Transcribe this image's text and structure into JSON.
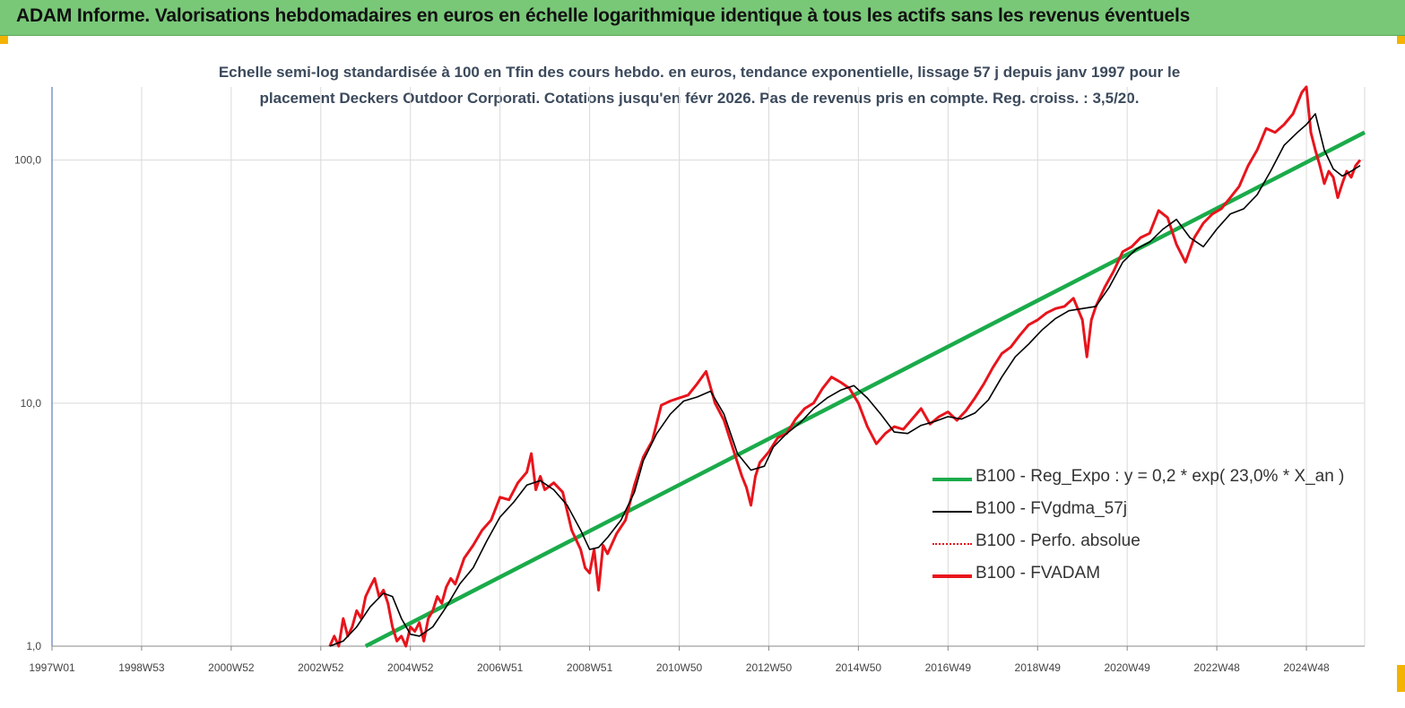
{
  "title": "ADAM Informe. Valorisations hebdomadaires en euros en échelle logarithmique identique à tous les actifs sans les revenus éventuels",
  "subtitle_line1": "Echelle semi-log standardisée à 100 en Tfin des cours hebdo. en euros, tendance exponentielle, lissage 57 j depuis janv 1997 pour le",
  "subtitle_line2": "placement Deckers Outdoor Corporati. Cotations jusqu'en févr 2026. Pas de revenus pris en compte. Reg. croiss. : 3,5/20.",
  "colors": {
    "title_bar": "#79c878",
    "corner": "#f3b300",
    "reg_expo": "#1aab4a",
    "fvgdma": "#000000",
    "perfo": "#e8141c",
    "fvadam": "#e8141c",
    "grid": "#d9d9d9",
    "axis": "#5b7fb0"
  },
  "chart_data": {
    "type": "line",
    "y_scale": "log",
    "ylim": [
      1,
      200
    ],
    "y_ticks": [
      {
        "value": 1,
        "label": "1,0"
      },
      {
        "value": 10,
        "label": "10,0"
      },
      {
        "value": 100,
        "label": "100,0"
      }
    ],
    "x_range": [
      1997.0,
      2026.3
    ],
    "x_ticks": [
      {
        "value": 1997.0,
        "label": "1997W01"
      },
      {
        "value": 1999.0,
        "label": "1998W53"
      },
      {
        "value": 2001.0,
        "label": "2000W52"
      },
      {
        "value": 2003.0,
        "label": "2002W52"
      },
      {
        "value": 2005.0,
        "label": "2004W52"
      },
      {
        "value": 2007.0,
        "label": "2006W51"
      },
      {
        "value": 2009.0,
        "label": "2008W51"
      },
      {
        "value": 2011.0,
        "label": "2010W50"
      },
      {
        "value": 2013.0,
        "label": "2012W50"
      },
      {
        "value": 2015.0,
        "label": "2014W50"
      },
      {
        "value": 2017.0,
        "label": "2016W49"
      },
      {
        "value": 2019.0,
        "label": "2018W49"
      },
      {
        "value": 2021.0,
        "label": "2020W49"
      },
      {
        "value": 2023.0,
        "label": "2022W48"
      },
      {
        "value": 2025.0,
        "label": "2024W48"
      }
    ],
    "grid": true,
    "legend_position": "bottom-right",
    "series": [
      {
        "name": "B100 - Reg_Expo : y = 0,2 * exp( 23,0% *  X_an )",
        "style": "thick-green",
        "x": [
          2004.0,
          2026.3
        ],
        "y": [
          1.0,
          130.0
        ]
      },
      {
        "name": "B100 - FVgdma_57j",
        "style": "thin-black",
        "x": [
          2003.2,
          2003.5,
          2003.8,
          2004.1,
          2004.4,
          2004.6,
          2004.8,
          2005.0,
          2005.2,
          2005.5,
          2005.8,
          2006.1,
          2006.4,
          2006.7,
          2007.0,
          2007.3,
          2007.6,
          2007.9,
          2008.2,
          2008.5,
          2008.8,
          2009.0,
          2009.2,
          2009.4,
          2009.7,
          2010.0,
          2010.2,
          2010.5,
          2010.8,
          2011.1,
          2011.4,
          2011.7,
          2012.0,
          2012.3,
          2012.6,
          2012.9,
          2013.1,
          2013.4,
          2013.7,
          2014.0,
          2014.3,
          2014.6,
          2014.9,
          2015.2,
          2015.5,
          2015.8,
          2016.1,
          2016.4,
          2016.7,
          2017.0,
          2017.3,
          2017.6,
          2017.9,
          2018.2,
          2018.5,
          2018.8,
          2019.1,
          2019.4,
          2019.7,
          2020.0,
          2020.3,
          2020.6,
          2020.9,
          2021.2,
          2021.5,
          2021.8,
          2022.1,
          2022.4,
          2022.7,
          2023.0,
          2023.3,
          2023.6,
          2023.9,
          2024.2,
          2024.5,
          2024.8,
          2025.0,
          2025.2,
          2025.4,
          2025.6,
          2025.8,
          2026.0,
          2026.2
        ],
        "y": [
          1.0,
          1.05,
          1.2,
          1.45,
          1.65,
          1.6,
          1.3,
          1.12,
          1.1,
          1.2,
          1.45,
          1.8,
          2.1,
          2.7,
          3.4,
          3.9,
          4.6,
          4.8,
          4.4,
          3.8,
          3.0,
          2.5,
          2.55,
          2.8,
          3.3,
          4.3,
          5.8,
          7.5,
          9.0,
          10.2,
          10.6,
          11.2,
          9.0,
          6.2,
          5.3,
          5.5,
          6.6,
          7.5,
          8.3,
          9.5,
          10.5,
          11.3,
          11.8,
          10.5,
          9.0,
          7.6,
          7.5,
          8.1,
          8.4,
          8.8,
          8.6,
          9.1,
          10.3,
          12.8,
          15.5,
          17.5,
          20.0,
          22.3,
          24.0,
          24.5,
          25.0,
          30.0,
          38.0,
          43.0,
          46.0,
          52.0,
          57.0,
          48.0,
          44.0,
          52.0,
          60.0,
          63.0,
          72.0,
          90.0,
          115.0,
          130.0,
          140.0,
          155.0,
          110.0,
          92.0,
          86.0,
          90.0,
          95.0
        ]
      },
      {
        "name": "B100 - Perfo. absolue",
        "style": "dotted-red",
        "x": [],
        "y": []
      },
      {
        "name": "B100 - FVADAM",
        "style": "thick-red",
        "x": [
          2003.2,
          2003.3,
          2003.4,
          2003.5,
          2003.6,
          2003.7,
          2003.8,
          2003.9,
          2004.0,
          2004.1,
          2004.2,
          2004.3,
          2004.4,
          2004.5,
          2004.6,
          2004.7,
          2004.8,
          2004.9,
          2005.0,
          2005.1,
          2005.2,
          2005.3,
          2005.4,
          2005.5,
          2005.6,
          2005.7,
          2005.8,
          2005.9,
          2006.0,
          2006.2,
          2006.4,
          2006.6,
          2006.8,
          2007.0,
          2007.2,
          2007.4,
          2007.6,
          2007.7,
          2007.8,
          2007.9,
          2008.0,
          2008.2,
          2008.4,
          2008.6,
          2008.8,
          2008.9,
          2009.0,
          2009.1,
          2009.2,
          2009.3,
          2009.4,
          2009.6,
          2009.8,
          2010.0,
          2010.2,
          2010.4,
          2010.6,
          2010.8,
          2011.0,
          2011.2,
          2011.4,
          2011.6,
          2011.8,
          2012.0,
          2012.2,
          2012.4,
          2012.5,
          2012.6,
          2012.7,
          2012.8,
          2013.0,
          2013.2,
          2013.4,
          2013.6,
          2013.8,
          2014.0,
          2014.2,
          2014.4,
          2014.6,
          2014.8,
          2015.0,
          2015.2,
          2015.4,
          2015.6,
          2015.8,
          2016.0,
          2016.2,
          2016.4,
          2016.6,
          2016.8,
          2017.0,
          2017.2,
          2017.4,
          2017.6,
          2017.8,
          2018.0,
          2018.2,
          2018.4,
          2018.6,
          2018.8,
          2019.0,
          2019.2,
          2019.4,
          2019.6,
          2019.8,
          2020.0,
          2020.1,
          2020.2,
          2020.3,
          2020.5,
          2020.7,
          2020.9,
          2021.1,
          2021.3,
          2021.5,
          2021.7,
          2021.9,
          2022.1,
          2022.3,
          2022.5,
          2022.7,
          2022.9,
          2023.1,
          2023.3,
          2023.5,
          2023.7,
          2023.9,
          2024.1,
          2024.3,
          2024.5,
          2024.7,
          2024.9,
          2025.0,
          2025.1,
          2025.2,
          2025.3,
          2025.4,
          2025.5,
          2025.6,
          2025.7,
          2025.8,
          2025.9,
          2026.0,
          2026.1,
          2026.2
        ],
        "y": [
          1.0,
          1.1,
          1.0,
          1.3,
          1.1,
          1.2,
          1.4,
          1.3,
          1.6,
          1.75,
          1.9,
          1.6,
          1.7,
          1.5,
          1.2,
          1.05,
          1.1,
          1.0,
          1.2,
          1.15,
          1.25,
          1.05,
          1.3,
          1.4,
          1.6,
          1.5,
          1.75,
          1.9,
          1.8,
          2.3,
          2.6,
          3.0,
          3.3,
          4.1,
          4.0,
          4.7,
          5.2,
          6.2,
          4.4,
          5.0,
          4.4,
          4.7,
          4.3,
          3.0,
          2.5,
          2.1,
          2.0,
          2.5,
          1.7,
          2.6,
          2.4,
          2.9,
          3.3,
          4.6,
          6.0,
          7.0,
          9.8,
          10.2,
          10.5,
          10.8,
          12.0,
          13.5,
          10.0,
          8.5,
          6.5,
          5.0,
          4.5,
          3.8,
          5.0,
          5.7,
          6.3,
          7.2,
          7.5,
          8.6,
          9.5,
          10.0,
          11.5,
          12.8,
          12.2,
          11.5,
          10.0,
          8.0,
          6.8,
          7.5,
          8.0,
          7.8,
          8.6,
          9.5,
          8.2,
          8.8,
          9.2,
          8.5,
          9.3,
          10.5,
          12.0,
          14.0,
          16.0,
          17.0,
          19.0,
          21.0,
          22.0,
          23.5,
          24.5,
          25.0,
          27.0,
          22.0,
          15.5,
          22.0,
          25.0,
          30.0,
          35.0,
          42.0,
          44.0,
          48.0,
          50.0,
          62.0,
          58.0,
          45.0,
          38.0,
          48.0,
          55.0,
          60.0,
          63.0,
          70.0,
          78.0,
          95.0,
          110.0,
          135.0,
          130.0,
          140.0,
          155.0,
          190.0,
          200.0,
          130.0,
          110.0,
          95.0,
          80.0,
          90.0,
          85.0,
          70.0,
          80.0,
          90.0,
          85.0,
          95.0,
          100.0
        ]
      }
    ]
  },
  "legend": [
    {
      "label": "B100 - Reg_Expo : y = 0,2 * exp( 23,0% *  X_an )",
      "style": "thick-green"
    },
    {
      "label": "B100 - FVgdma_57j",
      "style": "thin-black"
    },
    {
      "label": "B100 - Perfo. absolue",
      "style": "dotted-red"
    },
    {
      "label": "B100 - FVADAM",
      "style": "thick-red"
    }
  ]
}
